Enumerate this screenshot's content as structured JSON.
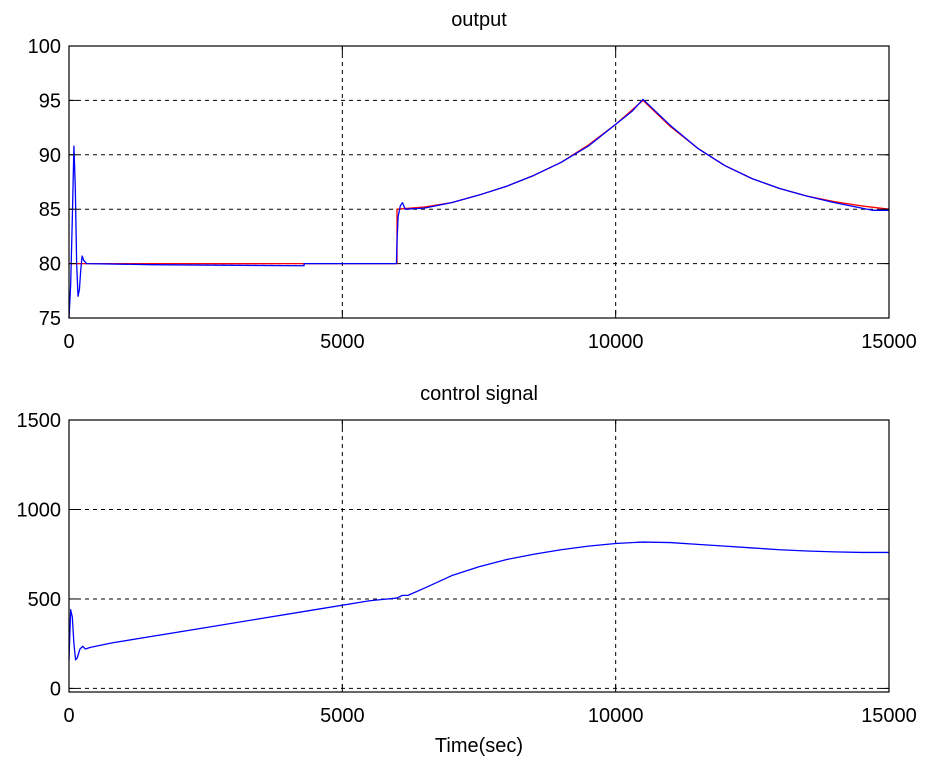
{
  "chart_data": [
    {
      "type": "line",
      "title": "output",
      "xlabel": "",
      "ylabel": "",
      "xlim": [
        0,
        15000
      ],
      "ylim": [
        75,
        100
      ],
      "xticks": [
        0,
        5000,
        10000,
        15000
      ],
      "yticks": [
        75,
        80,
        85,
        90,
        95,
        100
      ],
      "xtick_labels": [
        "0",
        "5000",
        "10000",
        "15000"
      ],
      "ytick_labels": [
        "75",
        "80",
        "85",
        "90",
        "95",
        "100"
      ],
      "grid": true,
      "grid_style": "dashed",
      "series": [
        {
          "color": "#ff0000",
          "points": [
            [
              0,
              80
            ],
            [
              6000,
              80
            ],
            [
              6000,
              85
            ],
            [
              6500,
              85.2
            ],
            [
              7000,
              85.6
            ],
            [
              7500,
              86.3
            ],
            [
              8000,
              87.1
            ],
            [
              8500,
              88.1
            ],
            [
              9000,
              89.3
            ],
            [
              9500,
              90.9
            ],
            [
              10000,
              92.8
            ],
            [
              10500,
              95
            ],
            [
              11000,
              92.6
            ],
            [
              11500,
              90.6
            ],
            [
              12000,
              89
            ],
            [
              12500,
              87.8
            ],
            [
              13000,
              86.9
            ],
            [
              13500,
              86.2
            ],
            [
              14000,
              85.7
            ],
            [
              14500,
              85.3
            ],
            [
              15000,
              85
            ]
          ]
        },
        {
          "color": "#0000ff",
          "points": [
            [
              0,
              75
            ],
            [
              30,
              78
            ],
            [
              60,
              84
            ],
            [
              90,
              90.8
            ],
            [
              115,
              87
            ],
            [
              140,
              80
            ],
            [
              165,
              77
            ],
            [
              190,
              77.6
            ],
            [
              215,
              79.4
            ],
            [
              240,
              80.7
            ],
            [
              270,
              80.3
            ],
            [
              320,
              80
            ],
            [
              1500,
              79.9
            ],
            [
              4300,
              79.8
            ],
            [
              4300,
              80
            ],
            [
              5990,
              80
            ],
            [
              6000,
              82
            ],
            [
              6020,
              84.3
            ],
            [
              6060,
              85.3
            ],
            [
              6100,
              85.6
            ],
            [
              6150,
              85
            ],
            [
              6500,
              85.1
            ],
            [
              7000,
              85.6
            ],
            [
              7500,
              86.3
            ],
            [
              8000,
              87.1
            ],
            [
              8500,
              88.1
            ],
            [
              9000,
              89.3
            ],
            [
              9500,
              90.8
            ],
            [
              10000,
              92.8
            ],
            [
              10300,
              94
            ],
            [
              10500,
              95.1
            ],
            [
              11000,
              92.7
            ],
            [
              11500,
              90.6
            ],
            [
              12000,
              89
            ],
            [
              12500,
              87.8
            ],
            [
              13000,
              86.9
            ],
            [
              13500,
              86.2
            ],
            [
              14000,
              85.6
            ],
            [
              14500,
              85.1
            ],
            [
              14700,
              84.9
            ],
            [
              15000,
              84.9
            ]
          ]
        }
      ]
    },
    {
      "type": "line",
      "title": "control signal",
      "xlabel": "Time(sec)",
      "ylabel": "",
      "xlim": [
        0,
        15000
      ],
      "ylim": [
        -20,
        1500
      ],
      "xticks": [
        0,
        5000,
        10000,
        15000
      ],
      "yticks": [
        0,
        500,
        1000,
        1500
      ],
      "xtick_labels": [
        "0",
        "5000",
        "10000",
        "15000"
      ],
      "ytick_labels": [
        "0",
        "500",
        "1000",
        "1500"
      ],
      "grid": true,
      "grid_style": "dashed",
      "series": [
        {
          "color": "#0000ff",
          "points": [
            [
              0,
              160
            ],
            [
              30,
              440
            ],
            [
              60,
              400
            ],
            [
              90,
              250
            ],
            [
              120,
              160
            ],
            [
              150,
              170
            ],
            [
              200,
              220
            ],
            [
              250,
              235
            ],
            [
              300,
              220
            ],
            [
              400,
              230
            ],
            [
              800,
              255
            ],
            [
              1500,
              290
            ],
            [
              2500,
              340
            ],
            [
              3500,
              390
            ],
            [
              4500,
              440
            ],
            [
              5500,
              490
            ],
            [
              6000,
              505
            ],
            [
              6100,
              520
            ],
            [
              6200,
              520
            ],
            [
              6500,
              560
            ],
            [
              7000,
              630
            ],
            [
              7500,
              680
            ],
            [
              8000,
              720
            ],
            [
              8500,
              750
            ],
            [
              9000,
              775
            ],
            [
              9500,
              795
            ],
            [
              10000,
              810
            ],
            [
              10500,
              818
            ],
            [
              11000,
              815
            ],
            [
              11500,
              805
            ],
            [
              12000,
              795
            ],
            [
              12500,
              785
            ],
            [
              13000,
              775
            ],
            [
              13500,
              768
            ],
            [
              14000,
              763
            ],
            [
              14500,
              760
            ],
            [
              15000,
              760
            ]
          ]
        }
      ]
    }
  ]
}
